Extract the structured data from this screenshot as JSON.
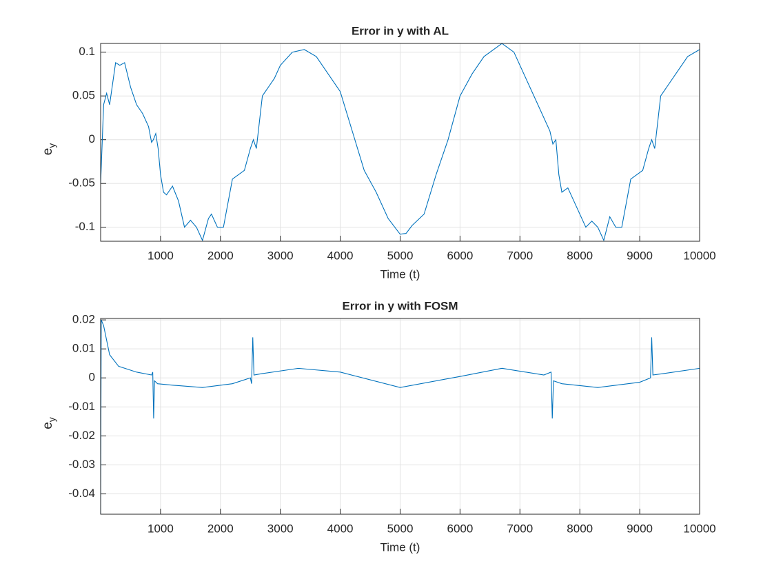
{
  "chart_data": [
    {
      "type": "line",
      "title": "Error in y with AL",
      "xlabel": "Time (t)",
      "ylabel": {
        "base": "e",
        "subscript": "y"
      },
      "color": "#0072bd",
      "grid": true,
      "xlim": [
        0,
        10000
      ],
      "xticks": [
        1000,
        2000,
        3000,
        4000,
        5000,
        6000,
        7000,
        8000,
        9000,
        10000
      ],
      "ylim": [
        -0.116,
        0.11
      ],
      "yticks": [
        -0.1,
        -0.05,
        0,
        0.05,
        0.1
      ],
      "x": [
        0,
        50,
        100,
        150,
        250,
        320,
        400,
        500,
        600,
        700,
        800,
        850,
        880,
        920,
        960,
        1000,
        1050,
        1100,
        1200,
        1300,
        1400,
        1500,
        1600,
        1700,
        1800,
        1850,
        1950,
        2050,
        2200,
        2400,
        2500,
        2550,
        2600,
        2700,
        2800,
        2900,
        3000,
        3200,
        3400,
        3600,
        3800,
        4000,
        4200,
        4400,
        4600,
        4800,
        5000,
        5100,
        5200,
        5400,
        5600,
        5800,
        6000,
        6200,
        6400,
        6700,
        6900,
        7100,
        7300,
        7500,
        7550,
        7600,
        7650,
        7700,
        7800,
        7900,
        8100,
        8200,
        8300,
        8400,
        8500,
        8600,
        8700,
        8850,
        9050,
        9150,
        9200,
        9250,
        9350,
        9450,
        9600,
        9800,
        10000
      ],
      "values": [
        -0.05,
        0.04,
        0.053,
        0.04,
        0.088,
        0.085,
        0.088,
        0.06,
        0.04,
        0.03,
        0.015,
        -0.003,
        0,
        0.007,
        -0.01,
        -0.04,
        -0.06,
        -0.063,
        -0.053,
        -0.07,
        -0.1,
        -0.092,
        -0.1,
        -0.115,
        -0.09,
        -0.085,
        -0.1,
        -0.1,
        -0.045,
        -0.035,
        -0.01,
        0,
        -0.01,
        0.05,
        0.06,
        0.07,
        0.085,
        0.1,
        0.103,
        0.095,
        0.075,
        0.055,
        0.01,
        -0.035,
        -0.06,
        -0.09,
        -0.108,
        -0.107,
        -0.098,
        -0.085,
        -0.04,
        0,
        0.05,
        0.075,
        0.095,
        0.11,
        0.1,
        0.07,
        0.04,
        0.01,
        -0.005,
        0,
        -0.04,
        -0.06,
        -0.055,
        -0.07,
        -0.1,
        -0.093,
        -0.1,
        -0.115,
        -0.088,
        -0.1,
        -0.1,
        -0.045,
        -0.035,
        -0.01,
        0,
        -0.01,
        0.05,
        0.06,
        0.075,
        0.095,
        0.103
      ]
    },
    {
      "type": "line",
      "title": "Error in y with FOSM",
      "xlabel": "Time (t)",
      "ylabel": {
        "base": "e",
        "subscript": "y"
      },
      "color": "#0072bd",
      "grid": true,
      "xlim": [
        0,
        10000
      ],
      "xticks": [
        1000,
        2000,
        3000,
        4000,
        5000,
        6000,
        7000,
        8000,
        9000,
        10000
      ],
      "ylim": [
        -0.047,
        0.0205
      ],
      "yticks": [
        -0.04,
        -0.03,
        -0.02,
        -0.01,
        0,
        0.01,
        0.02
      ],
      "x": [
        0,
        10,
        50,
        150,
        300,
        600,
        850,
        870,
        885,
        900,
        950,
        1200,
        1700,
        2200,
        2500,
        2520,
        2540,
        2560,
        2700,
        3300,
        4000,
        5000,
        6000,
        6700,
        7400,
        7520,
        7540,
        7560,
        7700,
        8300,
        9000,
        9180,
        9200,
        9220,
        9400,
        10000
      ],
      "values": [
        -0.047,
        0.02,
        0.018,
        0.008,
        0.004,
        0.002,
        0.001,
        0.002,
        -0.014,
        -0.001,
        -0.002,
        -0.0025,
        -0.0033,
        -0.002,
        0,
        -0.002,
        0.014,
        0.001,
        0.0015,
        0.0033,
        0.002,
        -0.0033,
        0.0005,
        0.0033,
        0.001,
        0.002,
        -0.014,
        -0.001,
        -0.002,
        -0.0033,
        -0.0015,
        0,
        0.014,
        0.001,
        0.0015,
        0.0033
      ]
    }
  ]
}
